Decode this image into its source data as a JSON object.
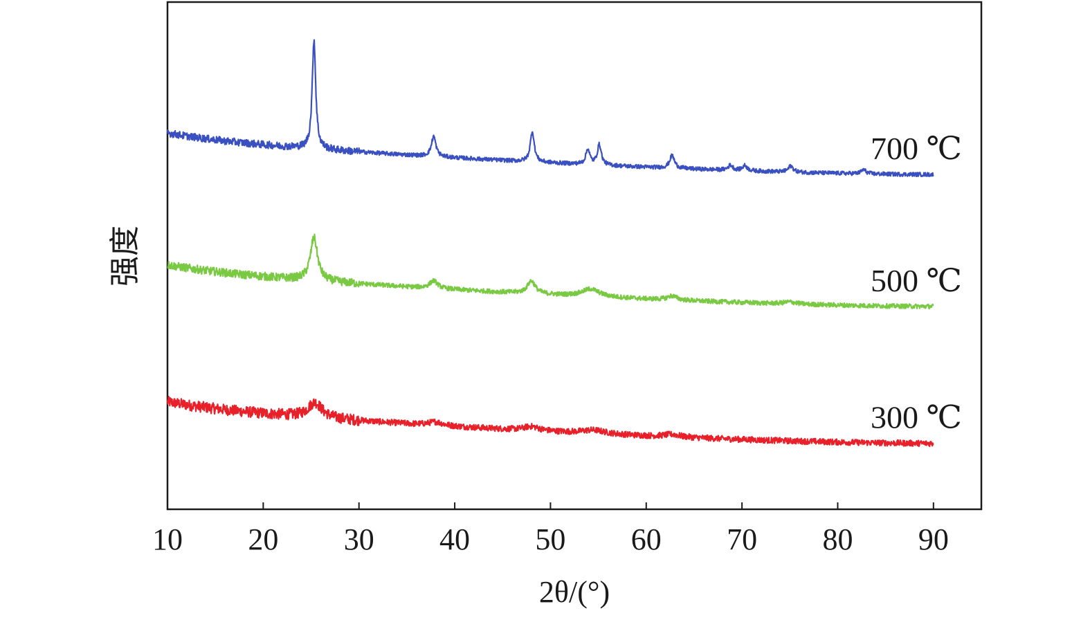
{
  "chart_data": {
    "type": "line",
    "xlabel": "2θ/(°)",
    "ylabel": "强度",
    "xlim": [
      10,
      95
    ],
    "x_ticks": [
      10,
      20,
      30,
      40,
      50,
      60,
      70,
      80,
      90
    ],
    "x_tick_labels": [
      "10",
      "20",
      "30",
      "40",
      "50",
      "60",
      "70",
      "80",
      "90"
    ],
    "y_ticks_visible": false,
    "grid": false,
    "x_range_data": [
      10,
      90
    ],
    "series": [
      {
        "name": "300 ℃",
        "color": "#e8202a",
        "baseline_start": 0.2,
        "baseline_end": 0.13,
        "noise": 0.012,
        "peaks": [
          {
            "x": 25.4,
            "height": 0.03,
            "width": 0.9
          },
          {
            "x": 38.0,
            "height": 0.007,
            "width": 0.9
          },
          {
            "x": 48.0,
            "height": 0.008,
            "width": 1.0
          },
          {
            "x": 54.5,
            "height": 0.007,
            "width": 1.5
          },
          {
            "x": 62.7,
            "height": 0.005,
            "width": 1.0
          }
        ]
      },
      {
        "name": "500 ℃",
        "color": "#7ac943",
        "baseline_start": 0.47,
        "baseline_end": 0.4,
        "noise": 0.009,
        "peaks": [
          {
            "x": 25.3,
            "height": 0.085,
            "width": 0.45
          },
          {
            "x": 37.8,
            "height": 0.015,
            "width": 0.5
          },
          {
            "x": 48.0,
            "height": 0.025,
            "width": 0.5
          },
          {
            "x": 54.2,
            "height": 0.015,
            "width": 1.1
          },
          {
            "x": 62.7,
            "height": 0.008,
            "width": 0.6
          },
          {
            "x": 75.0,
            "height": 0.004,
            "width": 0.8
          }
        ]
      },
      {
        "name": "700 ℃",
        "color": "#3a50c0",
        "baseline_start": 0.73,
        "baseline_end": 0.66,
        "noise": 0.008,
        "peaks": [
          {
            "x": 25.3,
            "height": 0.215,
            "width": 0.22
          },
          {
            "x": 37.8,
            "height": 0.04,
            "width": 0.28
          },
          {
            "x": 48.1,
            "height": 0.06,
            "width": 0.25
          },
          {
            "x": 53.9,
            "height": 0.03,
            "width": 0.25
          },
          {
            "x": 55.1,
            "height": 0.04,
            "width": 0.25
          },
          {
            "x": 62.7,
            "height": 0.025,
            "width": 0.3
          },
          {
            "x": 68.8,
            "height": 0.01,
            "width": 0.3
          },
          {
            "x": 70.3,
            "height": 0.01,
            "width": 0.3
          },
          {
            "x": 75.1,
            "height": 0.012,
            "width": 0.3
          },
          {
            "x": 82.7,
            "height": 0.008,
            "width": 0.3
          }
        ]
      }
    ]
  }
}
